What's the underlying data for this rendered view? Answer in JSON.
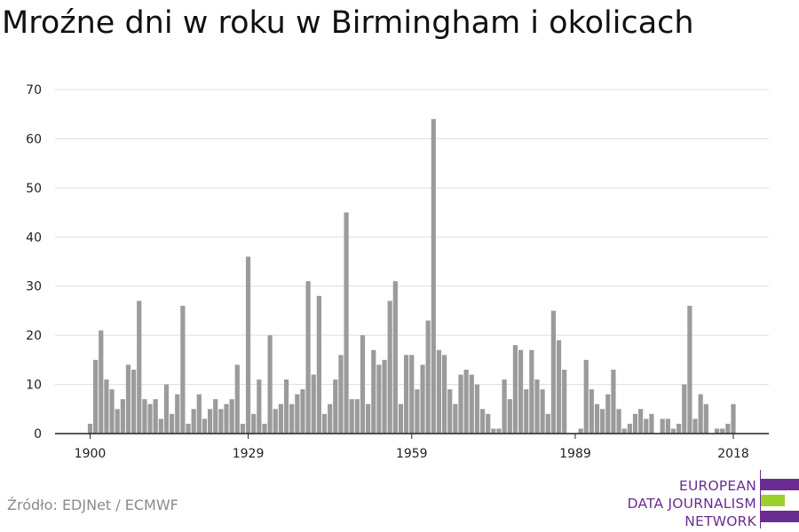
{
  "chart_data": {
    "type": "bar",
    "title": "Mroźne dni w roku w Birmingham i okolicach",
    "xlabel": "",
    "ylabel": "",
    "x_start": 1900,
    "x_end": 2018,
    "x_tick_labels": [
      "1900",
      "1929",
      "1959",
      "1989",
      "2018"
    ],
    "ylim": [
      0,
      70
    ],
    "y_ticks": [
      0,
      10,
      20,
      30,
      40,
      50,
      60,
      70
    ],
    "grid": true,
    "bar_color": "#9b9b9b",
    "values": [
      2,
      15,
      21,
      11,
      9,
      5,
      7,
      14,
      13,
      27,
      7,
      6,
      7,
      3,
      10,
      4,
      8,
      26,
      2,
      5,
      8,
      3,
      5,
      7,
      5,
      6,
      7,
      14,
      2,
      36,
      4,
      11,
      2,
      20,
      5,
      6,
      11,
      6,
      8,
      9,
      31,
      12,
      28,
      4,
      6,
      11,
      16,
      45,
      7,
      7,
      20,
      6,
      17,
      14,
      15,
      27,
      31,
      6,
      16,
      16,
      9,
      14,
      23,
      64,
      17,
      16,
      9,
      6,
      12,
      13,
      12,
      10,
      5,
      4,
      1,
      1,
      11,
      7,
      18,
      17,
      9,
      17,
      11,
      9,
      4,
      25,
      19,
      13,
      0,
      0,
      1,
      15,
      9,
      6,
      5,
      8,
      13,
      5,
      1,
      2,
      4,
      5,
      3,
      4,
      0,
      3,
      3,
      1,
      2,
      10,
      26,
      3,
      8,
      6,
      0,
      1,
      1,
      2,
      6
    ]
  },
  "footer": {
    "source": "Źródło: EDJNet / ECMWF"
  },
  "logo": {
    "lines": [
      "EUROPEAN",
      "DATA JOURNALISM",
      "NETWORK"
    ],
    "text_color": "#6a2c91",
    "bar_colors": [
      "#6a2c91",
      "#9ccf2c",
      "#6a2c91"
    ]
  }
}
